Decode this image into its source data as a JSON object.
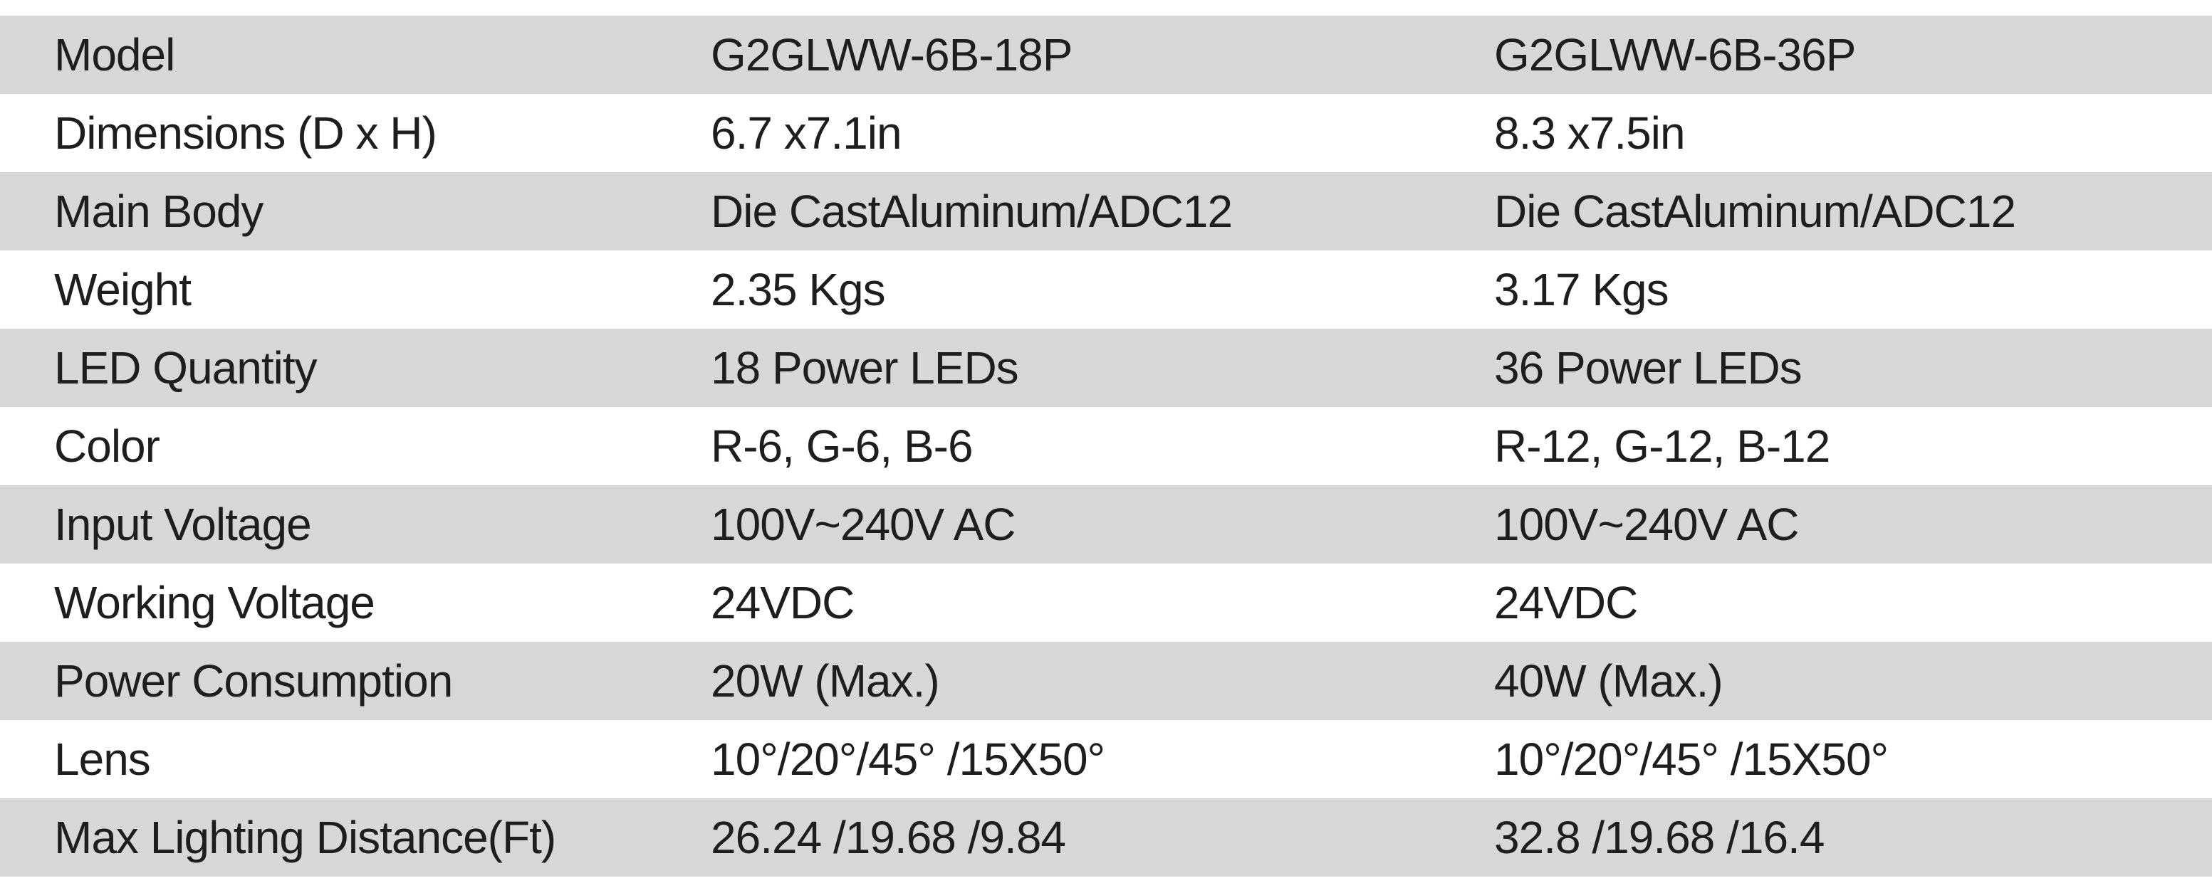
{
  "rows": [
    {
      "label": "Model",
      "a": "G2GLWW-6B-18P",
      "b": "G2GLWW-6B-36P"
    },
    {
      "label": "Dimensions (D x H)",
      "a": "6.7 x7.1in",
      "b": "8.3 x7.5in"
    },
    {
      "label": "Main Body",
      "a": "Die CastAluminum/ADC12",
      "b": "Die CastAluminum/ADC12"
    },
    {
      "label": "Weight",
      "a": "2.35 Kgs",
      "b": "3.17 Kgs"
    },
    {
      "label": "LED Quantity",
      "a": "18 Power LEDs",
      "b": "36 Power LEDs"
    },
    {
      "label": "Color",
      "a": "R-6, G-6, B-6",
      "b": "R-12, G-12, B-12"
    },
    {
      "label": "Input Voltage",
      "a": "100V~240V AC",
      "b": "100V~240V AC"
    },
    {
      "label": "Working Voltage",
      "a": "24VDC",
      "b": "24VDC"
    },
    {
      "label": "Power Consumption",
      "a": "20W (Max.)",
      "b": "40W (Max.)"
    },
    {
      "label": "Lens",
      "a": "10°/20°/45° /15X50°",
      "b": "10°/20°/45° /15X50°"
    },
    {
      "label": "Max Lighting Distance(Ft)",
      "a": "26.24 /19.68 /9.84",
      "b": "32.8 /19.68 /16.4"
    }
  ],
  "colors": {
    "shaded_row": "#d7d7d7",
    "plain_row": "#ffffff",
    "text": "#1e1e1e"
  }
}
